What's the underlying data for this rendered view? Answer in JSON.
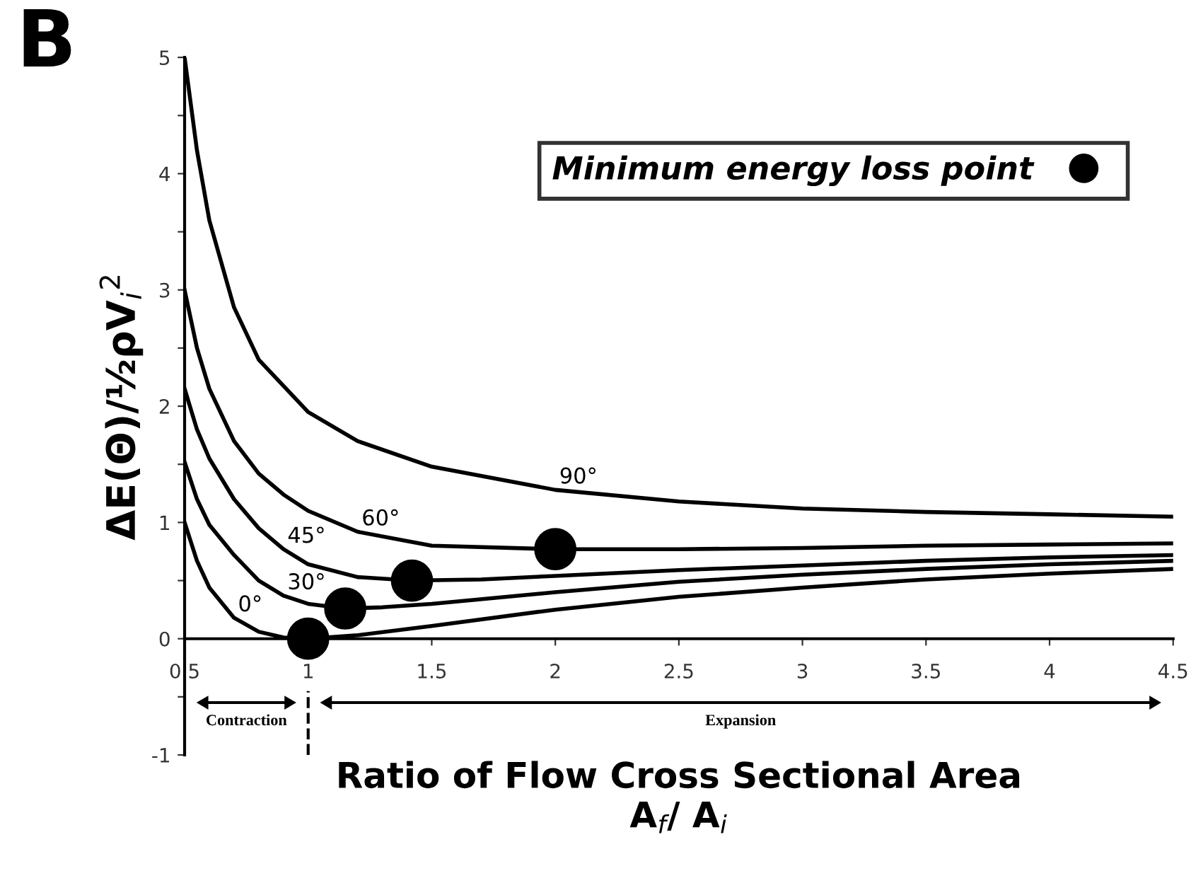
{
  "chart_data": {
    "type": "line",
    "title": "B",
    "xlabel": "Ratio of Flow Cross Sectional Area\nA$_{f}$/ A$_{i}$",
    "ylabel": "ΔE(Θ)/½ρV$_{i}$$^{2}$",
    "xlim": [
      0.5,
      4.5
    ],
    "xticks": [
      0.5,
      1,
      1.5,
      2,
      2.5,
      3,
      3.5,
      4,
      4.5
    ],
    "ylim": [
      -1,
      5
    ],
    "yticks": [
      -1,
      {
        "value": -0.5,
        "label": null
      },
      0,
      {
        "value": 0.5,
        "label": null
      },
      1,
      {
        "value": 1.5,
        "label": null
      },
      2,
      {
        "value": 2.5,
        "label": null
      },
      3,
      {
        "value": 3.5,
        "label": null
      },
      4,
      {
        "value": 4.5,
        "label": null
      },
      5
    ],
    "grid": false,
    "legend": "top right",
    "line_style": "solid",
    "series": [
      {
        "name": "90°",
        "color": "#000000",
        "marker": "none",
        "x": [
          0.5,
          0.55,
          0.6,
          0.7,
          0.8,
          1.0,
          1.2,
          1.5,
          2,
          2.5,
          3,
          3.5,
          4,
          4.5
        ],
        "values": [
          5.0,
          4.2,
          3.6,
          2.85,
          2.4,
          1.95,
          1.7,
          1.48,
          1.28,
          1.18,
          1.12,
          1.09,
          1.07,
          1.05
        ]
      },
      {
        "name": "60°",
        "color": "#000000",
        "marker": "none",
        "x": [
          0.5,
          0.55,
          0.6,
          0.7,
          0.8,
          0.9,
          1.0,
          1.2,
          1.5,
          2,
          2.5,
          3,
          3.5,
          4,
          4.5
        ],
        "values": [
          3.0,
          2.5,
          2.15,
          1.7,
          1.42,
          1.24,
          1.1,
          0.92,
          0.8,
          0.77,
          0.77,
          0.78,
          0.8,
          0.81,
          0.82
        ]
      },
      {
        "name": "45°",
        "color": "#000000",
        "marker": "none",
        "x": [
          0.5,
          0.55,
          0.6,
          0.7,
          0.8,
          0.9,
          1.0,
          1.2,
          1.42,
          1.7,
          2,
          2.5,
          3,
          3.5,
          4,
          4.5
        ],
        "values": [
          2.15,
          1.8,
          1.55,
          1.2,
          0.95,
          0.77,
          0.64,
          0.53,
          0.5,
          0.51,
          0.54,
          0.59,
          0.63,
          0.67,
          0.7,
          0.72
        ]
      },
      {
        "name": "30°",
        "color": "#000000",
        "marker": "none",
        "x": [
          0.5,
          0.55,
          0.6,
          0.7,
          0.8,
          0.9,
          1.0,
          1.15,
          1.3,
          1.5,
          2,
          2.5,
          3,
          3.5,
          4,
          4.5
        ],
        "values": [
          1.52,
          1.2,
          0.98,
          0.72,
          0.5,
          0.37,
          0.3,
          0.26,
          0.27,
          0.3,
          0.4,
          0.49,
          0.55,
          0.6,
          0.64,
          0.67
        ]
      },
      {
        "name": "0°",
        "color": "#000000",
        "marker": "none",
        "x": [
          0.5,
          0.55,
          0.6,
          0.7,
          0.8,
          0.9,
          1.0,
          1.2,
          1.5,
          2,
          2.5,
          3,
          3.5,
          4,
          4.5
        ],
        "values": [
          1.0,
          0.67,
          0.44,
          0.18,
          0.06,
          0.01,
          0.0,
          0.03,
          0.11,
          0.25,
          0.36,
          0.44,
          0.51,
          0.56,
          0.6
        ]
      },
      {
        "type": "scatter",
        "name": "Minimum energy loss point",
        "color": "#000000",
        "marker": "circle",
        "x": [
          1,
          1.15,
          1.42,
          2
        ],
        "values": [
          0,
          0.26,
          0.5,
          0.77
        ]
      }
    ],
    "annotations": [
      "Contraction",
      "Expansion"
    ],
    "ref_lines": [
      {
        "axis": "x",
        "value": 1,
        "label": null,
        "line_style": "dashed",
        "color": "#000000"
      }
    ]
  }
}
